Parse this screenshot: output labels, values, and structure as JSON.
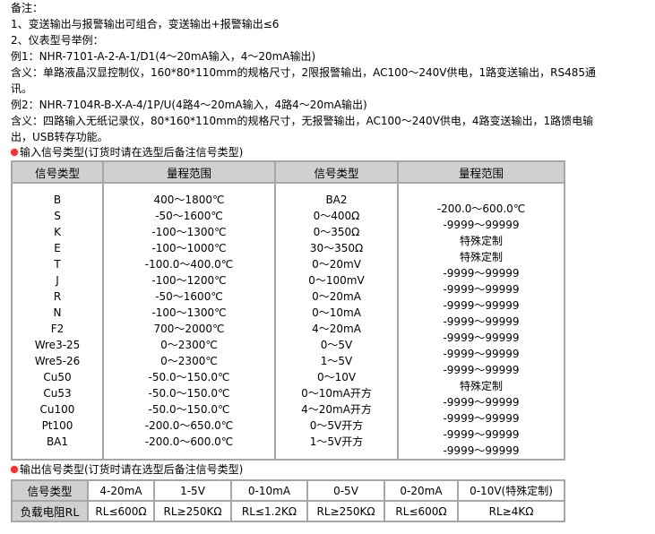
{
  "notes": {
    "title": "备注：",
    "lines": [
      "1、变送输出与报警输出可组合，变送输出+报警输出≤6",
      "2、仪表型号举例：",
      "例1：NHR-7101-A-2-A-1/D1(4～20mA输入，4～20mA输出)",
      "含义：单路液晶汉显控制仪，160*80*110mm的规格尺寸，2限报警输出，AC100～240V供电，1路变送输出，RS485通",
      "讯。",
      "例2：NHR-7104R-B-X-A-4/1P/U(4路4～20mA输入，4路4～20mA输出)",
      "含义：四路输入无纸记录仪，80*160*110mm的规格尺寸，无报警输出，AC100～240V供电，4路变送输出，1路馈电输",
      "出，USB转存功能。"
    ]
  },
  "input_table": {
    "caption": "输入信号类型(订货时请在选型后备注信号类型)",
    "headers": [
      "信号类型",
      "量程范围",
      "信号类型",
      "量程范围"
    ],
    "col1": [
      "B",
      "S",
      "K",
      "E",
      "T",
      "J",
      "R",
      "N",
      "F2",
      "Wre3-25",
      "Wre5-26",
      "Cu50",
      "Cu53",
      "Cu100",
      "Pt100",
      "BA1"
    ],
    "col2": [
      "400～1800℃",
      "-50～1600℃",
      "-100～1300℃",
      "-100～1000℃",
      "-100.0～400.0℃",
      "-100～1200℃",
      "-50～1600℃",
      "-100～1300℃",
      "700～2000℃",
      "0～2300℃",
      "0～2300℃",
      "-50.0～150.0℃",
      "-50.0～150.0℃",
      "-50.0～150.0℃",
      "-200.0～650.0℃",
      "-200.0～600.0℃"
    ],
    "col3": [
      "BA2",
      "0～400Ω",
      "0～350Ω",
      "30～350Ω",
      "0～20mV",
      "0～100mV",
      "0～20mA",
      "0～10mA",
      "4～20mA",
      "0～5V",
      "1～5V",
      "0～10V",
      "0～10mA开方",
      "4～20mA开方",
      "0～5V开方",
      "1～5V开方"
    ],
    "col4": [
      "-200.0～600.0℃",
      "-9999～99999",
      "特殊定制",
      "特殊定制",
      "-9999～99999",
      "-9999～99999",
      "-9999～99999",
      "-9999～99999",
      "-9999～99999",
      "-9999～99999",
      "-9999～99999",
      "特殊定制",
      "-9999～99999",
      "-9999～99999",
      "-9999～99999",
      "-9999～99999"
    ]
  },
  "output_table": {
    "caption": "输出信号类型(订货时请在选型后备注信号类型)",
    "row1": [
      "信号类型",
      "4-20mA",
      "1-5V",
      "0-10mA",
      "0-5V",
      "0-20mA",
      "0-10V(特殊定制)"
    ],
    "row2": [
      "负载电阻RL",
      "RL≤600Ω",
      "RL≥250KΩ",
      "RL≤1.2KΩ",
      "RL≥250KΩ",
      "RL≤600Ω",
      "RL≥4KΩ"
    ]
  },
  "colors": {
    "border": "#a6a6a6",
    "header_bg": "#d0d0d0",
    "bullet": "#e33333"
  }
}
